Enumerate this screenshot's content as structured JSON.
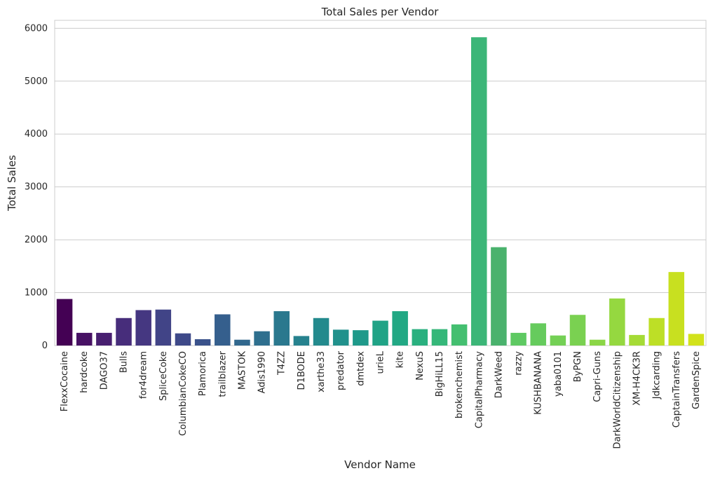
{
  "chart_data": {
    "type": "bar",
    "title": "Total Sales per Vendor",
    "xlabel": "Vendor Name",
    "ylabel": "Total Sales",
    "ylim": [
      0,
      6150
    ],
    "yticks": [
      0,
      1000,
      2000,
      3000,
      4000,
      5000,
      6000
    ],
    "grid": "horizontal",
    "palette": "viridis",
    "categories": [
      "FlexxCocaine",
      "hardcoke",
      "DAGO37",
      "Bulls",
      "for4dream",
      "SpliceCoke",
      "ColumbianCokeCO",
      "Plamorica",
      "trailblazer",
      "MASTOK",
      "Adis1990",
      "T4ZZ",
      "D1BODE",
      "xarthe33",
      "predator",
      "dmtdex",
      "urieL",
      "kite",
      "NexuS",
      "BigHiLL15",
      "brokenchemist",
      "CapitalPharmacy",
      "DarkWeed",
      "razzy",
      "KUSHBANANA",
      "yaba0101",
      "ByPGN",
      "Capri-Guns",
      "DarkWorldCitizenship",
      "XM-H4CK3R",
      "Jdkcarding",
      "CaptainTransfers",
      "GardenSpice"
    ],
    "values": [
      880,
      240,
      240,
      520,
      670,
      680,
      230,
      120,
      590,
      110,
      270,
      650,
      180,
      520,
      300,
      290,
      470,
      650,
      310,
      310,
      400,
      5830,
      1860,
      240,
      420,
      190,
      580,
      110,
      890,
      200,
      520,
      1390,
      220
    ],
    "colors": [
      "#440154",
      "#471164",
      "#481f70",
      "#472d7b",
      "#453781",
      "#414487",
      "#3e4989",
      "#3a528b",
      "#355f8d",
      "#31688e",
      "#2e6f8e",
      "#2a788e",
      "#26828e",
      "#238a8d",
      "#21918c",
      "#1f998a",
      "#20a386",
      "#22a884",
      "#2ab07f",
      "#35b779",
      "#44bf70",
      "#3cb678",
      "#4ab26d",
      "#5ec962",
      "#66cb5d",
      "#74d055",
      "#7ad151",
      "#8bd646",
      "#95d840",
      "#a5db36",
      "#bddf26",
      "#c8e020",
      "#d2e21b"
    ]
  }
}
